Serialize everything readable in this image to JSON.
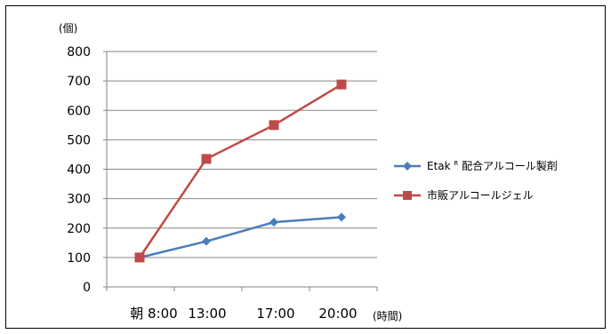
{
  "chart_data": {
    "type": "line",
    "ylabel": "(個)",
    "xunit": "(時間)",
    "ylim": [
      0,
      800
    ],
    "yticks": [
      "0",
      "100",
      "200",
      "300",
      "400",
      "500",
      "600",
      "700",
      "800"
    ],
    "categories": [
      "朝 8:00",
      "13:00",
      "17:00",
      "20:00"
    ],
    "legend_position": "right",
    "grid": true,
    "series": [
      {
        "name": "Etak®配合アルコール製剤",
        "name_main": "Etak",
        "name_sup": "R",
        "name_rest": "配合アルコール製剤",
        "marker": "diamond",
        "color": "#4a7ebb",
        "values": [
          100,
          155,
          220,
          237
        ]
      },
      {
        "name": "市販アルコールジェル",
        "marker": "square",
        "color": "#be4b48",
        "values": [
          100,
          435,
          550,
          688
        ]
      }
    ]
  }
}
